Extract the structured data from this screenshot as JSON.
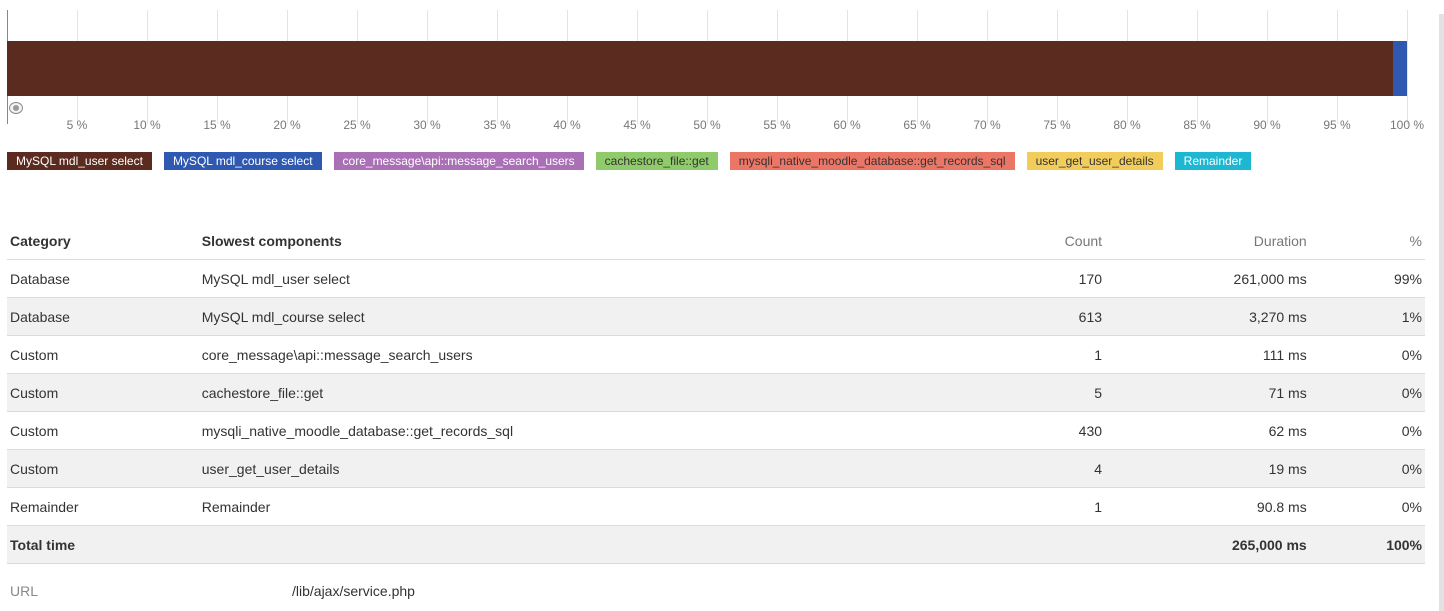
{
  "chart_data": {
    "type": "bar",
    "orientation": "horizontal-stacked",
    "x_ticks": [
      "5 %",
      "10 %",
      "15 %",
      "20 %",
      "25 %",
      "30 %",
      "35 %",
      "40 %",
      "45 %",
      "50 %",
      "55 %",
      "60 %",
      "65 %",
      "70 %",
      "75 %",
      "80 %",
      "85 %",
      "90 %",
      "95 %",
      "100 %"
    ],
    "xlim": [
      0,
      100
    ],
    "grid": true,
    "series": [
      {
        "name": "MySQL mdl_user select",
        "value": 99,
        "color": "#5c2b20"
      },
      {
        "name": "MySQL mdl_course select",
        "value": 1,
        "color": "#2f58b0"
      },
      {
        "name": "core_message\\api::message_search_users",
        "value": 0,
        "color": "#a970b5"
      },
      {
        "name": "cachestore_file::get",
        "value": 0,
        "color": "#8fcb6b"
      },
      {
        "name": "mysqli_native_moodle_database::get_records_sql",
        "value": 0,
        "color": "#ec7666"
      },
      {
        "name": "user_get_user_details",
        "value": 0,
        "color": "#f3cd5c"
      },
      {
        "name": "Remainder",
        "value": 0,
        "color": "#1eb7d1"
      }
    ]
  },
  "legend": [
    {
      "label": "MySQL mdl_user select",
      "bg": "#5c2b20",
      "fg": "#ffffff"
    },
    {
      "label": "MySQL mdl_course select",
      "bg": "#2f58b0",
      "fg": "#ffffff"
    },
    {
      "label": "core_message\\api::message_search_users",
      "bg": "#a970b5",
      "fg": "#ffffff"
    },
    {
      "label": "cachestore_file::get",
      "bg": "#8fcb6b",
      "fg": "#333333"
    },
    {
      "label": "mysqli_native_moodle_database::get_records_sql",
      "bg": "#ec7666",
      "fg": "#333333"
    },
    {
      "label": "user_get_user_details",
      "bg": "#f3cd5c",
      "fg": "#333333"
    },
    {
      "label": "Remainder",
      "bg": "#1eb7d1",
      "fg": "#ffffff"
    }
  ],
  "table": {
    "headers": {
      "category": "Category",
      "slowest": "Slowest components",
      "count": "Count",
      "duration": "Duration",
      "percent": "%"
    },
    "rows": [
      {
        "category": "Database",
        "component": "MySQL mdl_user select",
        "count": "170",
        "duration": "261,000 ms",
        "percent": "99%"
      },
      {
        "category": "Database",
        "component": "MySQL mdl_course select",
        "count": "613",
        "duration": "3,270 ms",
        "percent": "1%"
      },
      {
        "category": "Custom",
        "component": "core_message\\api::message_search_users",
        "count": "1",
        "duration": "111 ms",
        "percent": "0%"
      },
      {
        "category": "Custom",
        "component": "cachestore_file::get",
        "count": "5",
        "duration": "71 ms",
        "percent": "0%"
      },
      {
        "category": "Custom",
        "component": "mysqli_native_moodle_database::get_records_sql",
        "count": "430",
        "duration": "62 ms",
        "percent": "0%"
      },
      {
        "category": "Custom",
        "component": "user_get_user_details",
        "count": "4",
        "duration": "19 ms",
        "percent": "0%"
      },
      {
        "category": "Remainder",
        "component": "Remainder",
        "count": "1",
        "duration": "90.8 ms",
        "percent": "0%"
      }
    ],
    "total": {
      "label": "Total time",
      "duration": "265,000 ms",
      "percent": "100%"
    }
  },
  "url": {
    "label": "URL",
    "value": "/lib/ajax/service.php"
  }
}
